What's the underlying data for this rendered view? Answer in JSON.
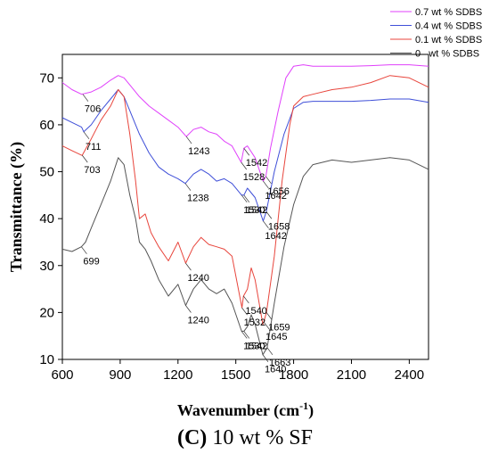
{
  "caption": {
    "panel": "(C)",
    "text": "10 wt % SF"
  },
  "chart_data": {
    "type": "line",
    "xlabel": "Wavenumber (cm",
    "xlabel_sup": "-1",
    "xlabel_close": ")",
    "ylabel": "Transmittance (%)",
    "xlim": [
      600,
      2500
    ],
    "ylim": [
      10,
      75
    ],
    "xticks": [
      600,
      900,
      1200,
      1500,
      1800,
      2100,
      2400
    ],
    "yticks": [
      10,
      20,
      30,
      40,
      50,
      60,
      70
    ],
    "legend": {
      "placement": "top-right"
    },
    "series": [
      {
        "name": "0.7 wt % SDBS",
        "color": "#e040fb",
        "x": [
          600,
          650,
          700,
          750,
          800,
          850,
          890,
          920,
          950,
          1000,
          1050,
          1100,
          1150,
          1200,
          1243,
          1280,
          1320,
          1360,
          1400,
          1440,
          1480,
          1528,
          1542,
          1560,
          1600,
          1642,
          1656,
          1680,
          1720,
          1760,
          1800,
          1850,
          1900,
          2000,
          2100,
          2200,
          2300,
          2400,
          2500
        ],
        "y": [
          69,
          67.5,
          66.5,
          67,
          68,
          69.5,
          70.5,
          70,
          68.5,
          66,
          64,
          62.5,
          61,
          59.5,
          57.5,
          59,
          59.5,
          58.5,
          58,
          56.5,
          55.5,
          52,
          55,
          55.5,
          53,
          48,
          49,
          55,
          63,
          70,
          72.5,
          72.8,
          72.5,
          72.5,
          72.5,
          72.6,
          72.8,
          72.8,
          72.5
        ]
      },
      {
        "name": "0.4 wt % SDBS",
        "color": "#3f4fd8",
        "x": [
          600,
          650,
          700,
          711,
          750,
          800,
          850,
          890,
          920,
          950,
          1000,
          1050,
          1100,
          1150,
          1200,
          1238,
          1280,
          1320,
          1360,
          1400,
          1440,
          1480,
          1530,
          1542,
          1560,
          1600,
          1642,
          1658,
          1700,
          1750,
          1800,
          1850,
          1900,
          2000,
          2100,
          2200,
          2300,
          2400,
          2500
        ],
        "y": [
          61.5,
          60.5,
          59.5,
          58.5,
          60,
          63,
          65.5,
          67.5,
          66,
          63,
          58,
          54,
          51,
          49.5,
          48.5,
          47.5,
          49.5,
          50.5,
          49.5,
          48,
          48.5,
          47.5,
          45,
          45,
          46.5,
          44.5,
          39.5,
          41.5,
          50,
          58,
          63.5,
          64.8,
          65,
          65,
          65,
          65.2,
          65.5,
          65.5,
          64.8
        ]
      },
      {
        "name": "0.1 wt % SDBS",
        "color": "#e8453c",
        "x": [
          600,
          650,
          700,
          703,
          750,
          800,
          850,
          890,
          920,
          950,
          980,
          1000,
          1030,
          1060,
          1100,
          1150,
          1200,
          1240,
          1280,
          1320,
          1360,
          1400,
          1440,
          1480,
          1532,
          1540,
          1560,
          1580,
          1600,
          1640,
          1645,
          1659,
          1700,
          1740,
          1780,
          1800,
          1850,
          1900,
          2000,
          2100,
          2200,
          2300,
          2400,
          2500
        ],
        "y": [
          55.5,
          54.5,
          53.5,
          53.5,
          57,
          61,
          64,
          67.5,
          66,
          58,
          48,
          40,
          41,
          37,
          34,
          31,
          35,
          30.5,
          34,
          36,
          34.5,
          34,
          33.5,
          32,
          21,
          23.5,
          25,
          29.5,
          27,
          17.5,
          18,
          20,
          32,
          48,
          60,
          64,
          66,
          66.5,
          67.5,
          68,
          69,
          70.5,
          70,
          68
        ]
      },
      {
        "name": "0   wt % SDBS",
        "color": "#555555",
        "x": [
          600,
          650,
          699,
          720,
          750,
          800,
          850,
          890,
          920,
          950,
          980,
          1000,
          1030,
          1060,
          1100,
          1150,
          1200,
          1240,
          1280,
          1320,
          1360,
          1400,
          1440,
          1480,
          1530,
          1542,
          1560,
          1580,
          1600,
          1640,
          1663,
          1700,
          1750,
          1800,
          1850,
          1900,
          2000,
          2100,
          2200,
          2300,
          2400,
          2500
        ],
        "y": [
          33.5,
          33,
          34,
          35,
          38,
          43,
          48,
          53,
          51.5,
          45,
          40,
          35,
          33.5,
          31,
          27,
          23.5,
          26,
          21.5,
          25,
          27,
          25,
          24,
          25,
          22,
          16,
          16,
          17,
          19.5,
          17.5,
          11,
          12.5,
          22,
          34,
          43,
          49,
          51.5,
          52.5,
          52,
          52.5,
          53,
          52.5,
          50.5
        ]
      }
    ],
    "annotations": [
      {
        "text": "706",
        "x": 706,
        "y": 66.5
      },
      {
        "text": "711",
        "x": 711,
        "y": 58.5
      },
      {
        "text": "703",
        "x": 703,
        "y": 53.5
      },
      {
        "text": "699",
        "x": 699,
        "y": 34
      },
      {
        "text": "1243",
        "x": 1243,
        "y": 57.5
      },
      {
        "text": "1238",
        "x": 1238,
        "y": 47.5
      },
      {
        "text": "1240",
        "x": 1240,
        "y": 30.5
      },
      {
        "text": "1240",
        "x": 1240,
        "y": 21.5
      },
      {
        "text": "1542",
        "x": 1542,
        "y": 55
      },
      {
        "text": "1528",
        "x": 1528,
        "y": 52
      },
      {
        "text": "1656",
        "x": 1656,
        "y": 49
      },
      {
        "text": "1642",
        "x": 1642,
        "y": 48
      },
      {
        "text": "1530",
        "x": 1530,
        "y": 45
      },
      {
        "text": "1542",
        "x": 1542,
        "y": 45
      },
      {
        "text": "1642",
        "x": 1642,
        "y": 39.5
      },
      {
        "text": "1658",
        "x": 1658,
        "y": 41.5
      },
      {
        "text": "1540",
        "x": 1540,
        "y": 23.5
      },
      {
        "text": "1532",
        "x": 1532,
        "y": 21
      },
      {
        "text": "1659",
        "x": 1659,
        "y": 20
      },
      {
        "text": "1645",
        "x": 1645,
        "y": 18
      },
      {
        "text": "1530",
        "x": 1530,
        "y": 16
      },
      {
        "text": "1542",
        "x": 1542,
        "y": 16
      },
      {
        "text": "1663",
        "x": 1663,
        "y": 12.5
      },
      {
        "text": "1640",
        "x": 1640,
        "y": 11
      }
    ]
  }
}
